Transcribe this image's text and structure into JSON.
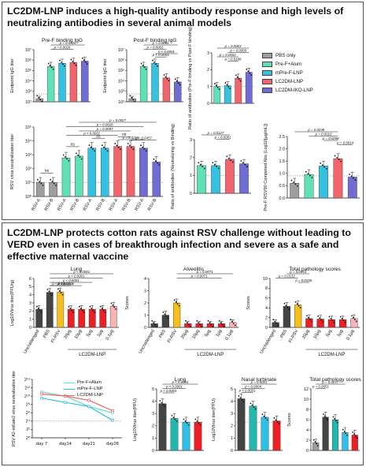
{
  "colors": {
    "pbs": "#9e9e9e",
    "pref_alum": "#5fe0b7",
    "mpref": "#35c1e0",
    "lc2dm": "#f2646c",
    "iko": "#6f6cd4",
    "gold": "#f5bf1c",
    "red": "#ee1f24",
    "pink": "#f7b4b7",
    "teal": "#22b8ad",
    "cyan": "#2ec0e8",
    "dark": "#444444"
  },
  "panel1": {
    "heading": "LC2DM-LNP induces a high-quality antibody response and high levels of neutralizing antibodies in several animal models",
    "legend": [
      "PBS only",
      "Pre-F+Alum",
      "mPre-F-LNP",
      "LC2DM-LNP",
      "LC2DM-IKO-LNP"
    ]
  },
  "panel2": {
    "heading": "LC2DM-LNP protects cotton rats against RSV challenge without leading to VERD even in cases of breakthrough infection and severe as a safe and effective maternal vaccine",
    "legend": [
      "Pre-F+Alum",
      "mPre-F-LNP",
      "LC2DM-LNP"
    ]
  },
  "chart_data": [
    {
      "id": "pref-binding",
      "type": "bar",
      "title": "Pre-F binding IgG",
      "ylabel": "Endpoint IgG titer",
      "scale": "log",
      "ylim": [
        100,
        10000000
      ],
      "yticks": [
        "10²",
        "10³",
        "10⁴",
        "10⁵",
        "10⁶",
        "10⁷"
      ],
      "categories": [
        "PBS only",
        "Pre-F+Alum",
        "mPre-F-LNP",
        "LC2DM-LNP",
        "LC2DM-IKO-LNP"
      ],
      "values": [
        200,
        250000,
        500000,
        600000,
        800000
      ],
      "pvalues": [
        "p = 0.0326",
        "p = 0.0026"
      ]
    },
    {
      "id": "postf-binding",
      "type": "bar",
      "title": "Post-F binding IgG",
      "ylabel": "Endpoint IgG titer",
      "scale": "log",
      "ylim": [
        100,
        10000000
      ],
      "yticks": [
        "10²",
        "10³",
        "10⁴",
        "10⁵",
        "10⁶",
        "10⁷"
      ],
      "categories": [
        "PBS only",
        "Pre-F+Alum",
        "mPre-F-LNP",
        "LC2DM-LNP",
        "LC2DM-IKO-LNP"
      ],
      "values": [
        200,
        250000,
        500000,
        20000,
        8000
      ],
      "pvalues": [
        "p < 0.0001",
        "p = 0.0003",
        "p < 0.0001",
        "p < 0.0001"
      ]
    },
    {
      "id": "ratio-prepost",
      "type": "bar",
      "ylabel": "Ratio of antibodies (Pre-F binding vs Post-F binding)",
      "ylim": [
        0,
        3
      ],
      "yticks": [
        "0",
        "1",
        "2",
        "3"
      ],
      "categories": [
        "Pre-F+Alum",
        "mPre-F-LNP",
        "LC2DM-LNP",
        "LC2DM-IKO-LNP"
      ],
      "values": [
        1.0,
        1.05,
        1.5,
        1.85
      ],
      "pvalues": [
        "p = 0.0003",
        "p = 0.0009",
        "p = 0.0102",
        "p = 0.0188"
      ]
    },
    {
      "id": "rsv-neut",
      "type": "bar",
      "ylabel": "RSV virus neutralization titer",
      "scale": "log",
      "ylim": [
        1,
        100000
      ],
      "yticks": [
        "10⁰",
        "10¹",
        "10²",
        "10³",
        "10⁴",
        "10⁵"
      ],
      "categories": [
        "RSV-A",
        "RSV-B",
        "RSV-A",
        "RSV-B",
        "RSV-A",
        "RSV-B",
        "RSV-A",
        "RSV-B",
        "RSV-A",
        "RSV-B"
      ],
      "values": [
        10,
        10,
        600,
        800,
        3000,
        3000,
        4000,
        4000,
        3000,
        300
      ],
      "pvalues": [
        "p = 0.0027",
        "p = 0.0026",
        "p = 0.0097",
        "p < 0.0001",
        "p = 0.0218",
        "p = 0.0457",
        "ns",
        "ns",
        "ns",
        "ns"
      ]
    },
    {
      "id": "ratio-neutbind",
      "type": "bar",
      "ylabel": "Ratio of antibodies (Neutralizing vs Binding)",
      "ylim": [
        0,
        3
      ],
      "yticks": [
        "0",
        "1",
        "2",
        "3"
      ],
      "categories": [
        "Pre-F+Alum",
        "mPre-F-LNP",
        "LC2DM-LNP",
        "LC2DM-IKO-LNP"
      ],
      "values": [
        1.55,
        1.55,
        1.9,
        1.65
      ],
      "pvalues": [
        "p = 0.0127",
        "p = 0.0081"
      ]
    },
    {
      "id": "prefrsv90",
      "type": "bar",
      "ylabel": "Pre-F RSV90 Competed Abs (Log10[µg/mL])",
      "ylim": [
        0,
        2.5
      ],
      "yticks": [
        "0.0",
        "0.5",
        "1.0",
        "1.5",
        "2.0",
        "2.5"
      ],
      "categories": [
        "PBS only",
        "Pre-F+Alum",
        "mPre-F-LNP",
        "LC2DM-LNP",
        "LC2DM-IKO-LNP"
      ],
      "values": [
        0.6,
        0.95,
        1.3,
        1.6,
        0.85
      ],
      "pvalues": [
        "p = 0.0246",
        "p = 0.0010",
        "p = 0.0288",
        "p = 0.0014"
      ]
    },
    {
      "id": "lung-titer",
      "type": "bar",
      "title": "Lung",
      "ylabel": "Log10Virus titer(PFU/g)",
      "ylim": [
        0,
        6
      ],
      "yticks": [
        "0",
        "1",
        "2",
        "3",
        "4",
        "5",
        "6"
      ],
      "categories": [
        "Unchallenged",
        "PBS",
        "FI-RSV",
        "20μg",
        "10μg",
        "5μg",
        "1μg",
        "0.1μg"
      ],
      "group_label": "LC2DM-LNP",
      "values": [
        2.2,
        4.3,
        4.35,
        2.2,
        2.2,
        2.2,
        2.2,
        2.6
      ],
      "pvalues": [
        "p < 0.0001",
        "p < 0.0001",
        "p < 0.0001",
        "p < 0.0001",
        "p < 0.0001",
        "p < 0.0001"
      ]
    },
    {
      "id": "alveolitis",
      "type": "bar",
      "title": "Alveolitis",
      "ylabel": "Scores",
      "ylim": [
        0,
        4
      ],
      "yticks": [
        "0",
        "1",
        "2",
        "3",
        "4"
      ],
      "categories": [
        "Unchallenged",
        "PBS",
        "FI-RSV",
        "20μg",
        "10μg",
        "5μg",
        "1μg",
        "0.1μg"
      ],
      "group_label": "LC2DM-LNP",
      "values": [
        0.3,
        1.0,
        2.0,
        0.3,
        0.3,
        0.3,
        0.3,
        0.4
      ],
      "pvalues": [
        "p = 0.0071",
        "p = 0.0071"
      ]
    },
    {
      "id": "total-pathology",
      "type": "bar",
      "title": "Total pathology scores",
      "ylabel": "Scores",
      "ylim": [
        0,
        10
      ],
      "yticks": [
        "0",
        "2",
        "4",
        "6",
        "8",
        "10"
      ],
      "categories": [
        "Unchallenged",
        "PBS",
        "FI-RSV",
        "20μg",
        "10μg",
        "5μg",
        "1μg",
        "0.1μg"
      ],
      "group_label": "LC2DM-LNP",
      "values": [
        1.0,
        4.3,
        4.6,
        1.8,
        1.7,
        1.6,
        1.6,
        1.8
      ],
      "pvalues": [
        "p = 0.0053",
        "p = 0.0132",
        "p = 0.0330"
      ]
    },
    {
      "id": "maternal-neut",
      "type": "line",
      "ylabel": "RSV A2-mKate2 virus neutralization titer",
      "ylim": [
        0,
        14
      ],
      "yticks": [
        "2⁰",
        "2²",
        "2⁴",
        "2⁶",
        "2⁸",
        "2¹⁰",
        "2¹²",
        "2¹⁴"
      ],
      "x": [
        "day 7",
        "day14",
        "day21",
        "day28"
      ],
      "series": [
        {
          "name": "Pre-F+Alum",
          "values": [
            11,
            10,
            7.5,
            6
          ]
        },
        {
          "name": "mPre-F-LNP",
          "values": [
            9.5,
            8.5,
            7.5,
            4.2
          ]
        },
        {
          "name": "LC2DM-LNP",
          "values": [
            10.5,
            10,
            9,
            6.5
          ]
        }
      ]
    },
    {
      "id": "maternal-lung",
      "type": "bar",
      "title": "Lung",
      "ylabel": "Log10Virus titer(PFU)",
      "ylim": [
        0,
        5
      ],
      "yticks": [
        "0",
        "1",
        "2",
        "3",
        "4",
        "5"
      ],
      "categories": [
        "PBS",
        "Pre-F+Alum",
        "mPre-F-LNP",
        "LC2DM-LNP"
      ],
      "values": [
        3.8,
        2.6,
        2.3,
        2.3
      ],
      "pvalues": [
        "p < 0.0001",
        "p < 0.0001",
        "p < 0.0001"
      ]
    },
    {
      "id": "maternal-nasal",
      "type": "bar",
      "title": "Nasal turbinate",
      "ylabel": "Log10Virus titer(PFU)",
      "ylim": [
        0,
        5
      ],
      "yticks": [
        "0",
        "1",
        "2",
        "3",
        "4",
        "5"
      ],
      "categories": [
        "PBS",
        "Pre-F+Alum",
        "mPre-F-LNP",
        "LC2DM-LNP"
      ],
      "values": [
        4.2,
        3.6,
        2.7,
        2.4
      ],
      "pvalues": [
        "p = 0.0001",
        "p = 0.0004",
        "p < 0.0001"
      ]
    },
    {
      "id": "maternal-pathology",
      "type": "bar",
      "title": "Total pathology scores",
      "ylabel": "Scores",
      "ylim": [
        0,
        12
      ],
      "yticks": [
        "0",
        "2",
        "4",
        "6",
        "8",
        "10",
        "12"
      ],
      "categories": [
        "Unchallenged",
        "PBS",
        "Pre-F+Alum",
        "mPre-F-LNP",
        "LC2DM-LNP"
      ],
      "values": [
        1.5,
        6.5,
        6.0,
        3.5,
        3.0
      ],
      "pvalues": [
        "p = 0.0077",
        "p = 0.0051"
      ]
    }
  ]
}
